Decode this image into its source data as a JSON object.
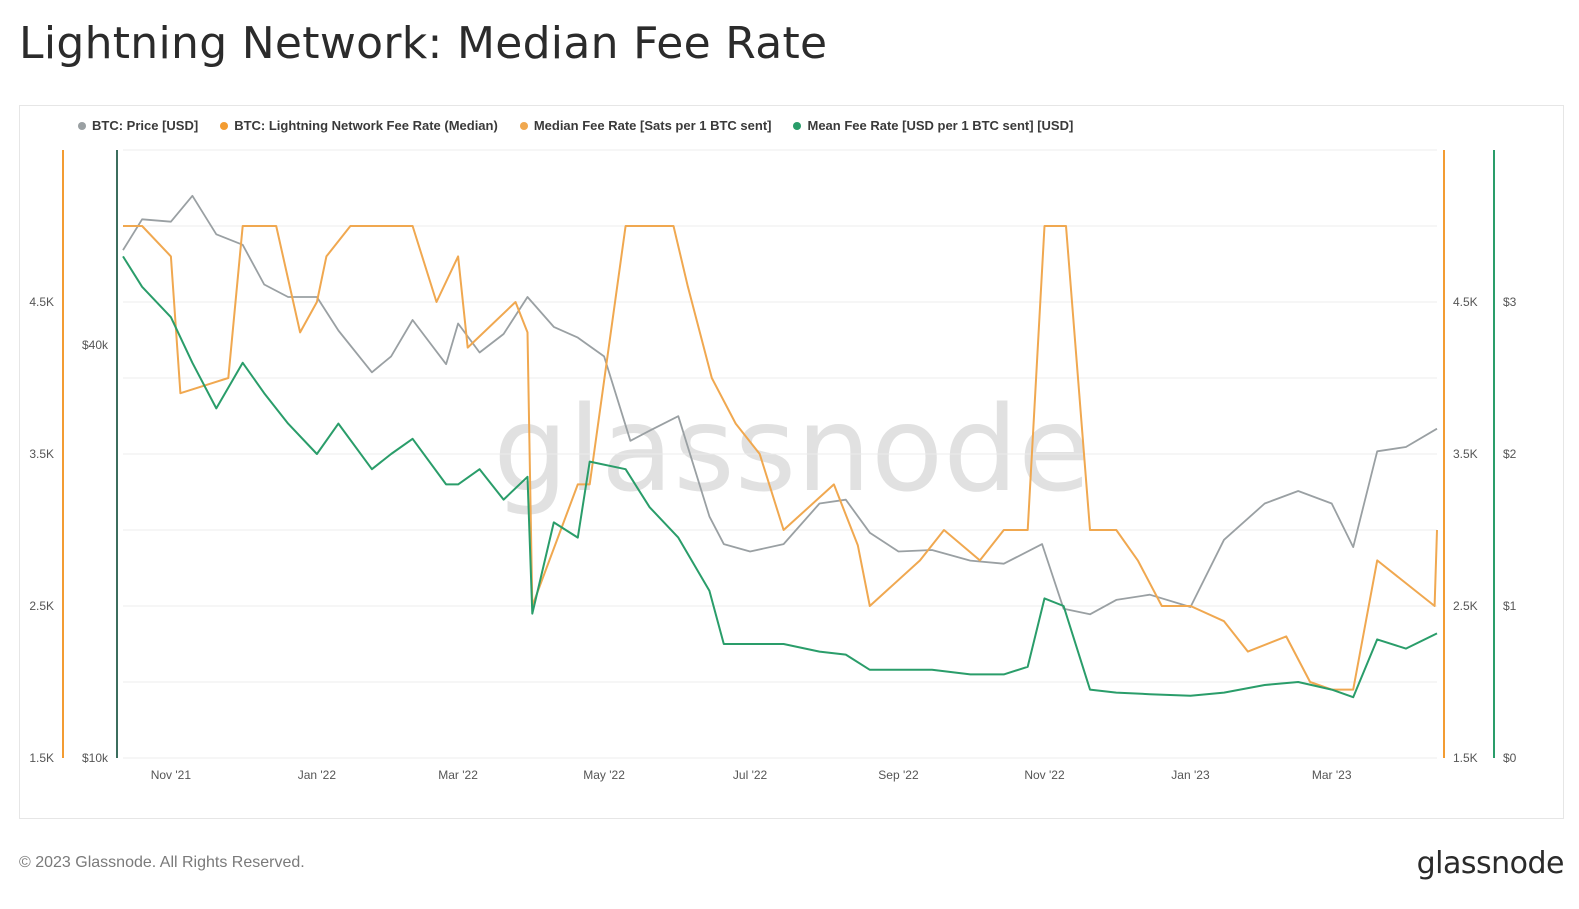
{
  "title": "Lightning Network: Median Fee Rate",
  "footer": {
    "copyright": "© 2023 Glassnode. All Rights Reserved.",
    "logo": "glassnode"
  },
  "watermark": "glassnode",
  "colors": {
    "price": "#9aa0a3",
    "ln_fee": "#f39c32",
    "median_fee": "#f0a850",
    "mean_fee": "#2a9d6a",
    "price_axis": "#3c6e5e",
    "grid": "#ececec"
  },
  "chart_data": {
    "type": "line",
    "legend_position": "top-left",
    "grid": true,
    "legend": [
      {
        "label": "BTC: Price [USD]",
        "color": "#9aa0a3"
      },
      {
        "label": "BTC: Lightning Network Fee Rate (Median)",
        "color": "#f39c32"
      },
      {
        "label": "Median Fee Rate [Sats per 1 BTC sent]",
        "color": "#f0a850"
      },
      {
        "label": "Mean Fee Rate [USD per 1 BTC sent] [USD]",
        "color": "#2a9d6a"
      }
    ],
    "x_ticks": [
      "Nov '21",
      "Jan '22",
      "Mar '22",
      "May '22",
      "Jul '22",
      "Sep '22",
      "Nov '22",
      "Jan '23",
      "Mar '23"
    ],
    "x_range": [
      "2021-10-12",
      "2023-04-14"
    ],
    "x_tick_dates": [
      "2021-11-01",
      "2022-01-01",
      "2022-03-01",
      "2022-05-01",
      "2022-07-01",
      "2022-09-01",
      "2022-11-01",
      "2023-01-01",
      "2023-03-01"
    ],
    "axes": {
      "left_sats": {
        "ticks": [
          "4.5K",
          "3.5K",
          "2.5K",
          "1.5K"
        ],
        "range": [
          1500,
          5500
        ]
      },
      "left_price": {
        "ticks": [
          "$40k",
          "$10k"
        ],
        "scale": "log"
      },
      "right_sats": {
        "ticks": [
          "4.5K",
          "3.5K",
          "2.5K",
          "1.5K"
        ],
        "range": [
          1500,
          5500
        ]
      },
      "right_usd": {
        "ticks": [
          "$3",
          "$2",
          "$1",
          "$0"
        ],
        "range": [
          0,
          4
        ]
      }
    },
    "series": [
      {
        "name": "BTC: Price [USD]",
        "axis": "left_price",
        "x": [
          "2021-10-12",
          "2021-10-20",
          "2021-11-01",
          "2021-11-10",
          "2021-11-20",
          "2021-12-01",
          "2021-12-10",
          "2021-12-20",
          "2022-01-01",
          "2022-01-10",
          "2022-01-24",
          "2022-02-01",
          "2022-02-10",
          "2022-02-24",
          "2022-03-01",
          "2022-03-10",
          "2022-03-20",
          "2022-03-30",
          "2022-04-10",
          "2022-04-20",
          "2022-05-01",
          "2022-05-12",
          "2022-05-20",
          "2022-06-01",
          "2022-06-14",
          "2022-06-20",
          "2022-07-01",
          "2022-07-15",
          "2022-07-30",
          "2022-08-10",
          "2022-08-20",
          "2022-09-01",
          "2022-09-15",
          "2022-10-01",
          "2022-10-15",
          "2022-10-31",
          "2022-11-09",
          "2022-11-20",
          "2022-12-01",
          "2022-12-15",
          "2023-01-01",
          "2023-01-15",
          "2023-02-01",
          "2023-02-15",
          "2023-03-01",
          "2023-03-10",
          "2023-03-20",
          "2023-04-01",
          "2023-04-14"
        ],
        "values": [
          55000,
          61000,
          60500,
          66000,
          58000,
          56000,
          49000,
          47000,
          47000,
          42000,
          36500,
          38500,
          43500,
          37500,
          43000,
          39000,
          41500,
          47000,
          42500,
          41000,
          38500,
          29000,
          30000,
          31500,
          22500,
          20500,
          20000,
          20500,
          23500,
          23800,
          21300,
          20000,
          20100,
          19400,
          19200,
          20500,
          16500,
          16200,
          17000,
          17300,
          16600,
          20800,
          23500,
          24500,
          23500,
          20300,
          28000,
          28400,
          30200
        ]
      },
      {
        "name": "Median Fee Rate [Sats per 1 BTC sent]",
        "axis": "left_sats",
        "x": [
          "2021-10-12",
          "2021-10-20",
          "2021-11-01",
          "2021-11-05",
          "2021-11-25",
          "2021-12-01",
          "2021-12-10",
          "2021-12-15",
          "2021-12-25",
          "2022-01-01",
          "2022-01-05",
          "2022-01-15",
          "2022-01-20",
          "2022-02-10",
          "2022-02-20",
          "2022-03-01",
          "2022-03-05",
          "2022-03-25",
          "2022-03-30",
          "2022-04-01",
          "2022-04-20",
          "2022-04-25",
          "2022-05-10",
          "2022-05-30",
          "2022-06-05",
          "2022-06-15",
          "2022-06-25",
          "2022-07-05",
          "2022-07-15",
          "2022-08-05",
          "2022-08-15",
          "2022-08-20",
          "2022-09-10",
          "2022-09-20",
          "2022-10-05",
          "2022-10-15",
          "2022-10-25",
          "2022-11-01",
          "2022-11-10",
          "2022-11-20",
          "2022-12-01",
          "2022-12-10",
          "2022-12-20",
          "2023-01-01",
          "2023-01-15",
          "2023-01-25",
          "2023-02-10",
          "2023-02-20",
          "2023-03-01",
          "2023-03-10",
          "2023-03-20",
          "2023-04-13",
          "2023-04-14"
        ],
        "values": [
          5000,
          5000,
          4800,
          3900,
          4000,
          5000,
          5000,
          5000,
          4300,
          4500,
          4800,
          5000,
          5000,
          5000,
          4500,
          4800,
          4200,
          4500,
          4300,
          2500,
          3300,
          3300,
          5000,
          5000,
          4600,
          4000,
          3700,
          3500,
          3000,
          3300,
          2900,
          2500,
          2800,
          3000,
          2800,
          3000,
          3000,
          5000,
          5000,
          3000,
          3000,
          2800,
          2500,
          2500,
          2400,
          2200,
          2300,
          2000,
          1950,
          1950,
          2800,
          2500,
          3000
        ]
      },
      {
        "name": "Mean Fee Rate [USD per 1 BTC sent] [USD]",
        "axis": "right_usd",
        "x": [
          "2021-10-12",
          "2021-10-20",
          "2021-11-01",
          "2021-11-10",
          "2021-11-20",
          "2021-12-01",
          "2021-12-10",
          "2021-12-20",
          "2022-01-01",
          "2022-01-10",
          "2022-01-24",
          "2022-02-01",
          "2022-02-10",
          "2022-02-24",
          "2022-03-01",
          "2022-03-10",
          "2022-03-20",
          "2022-03-30",
          "2022-04-01",
          "2022-04-10",
          "2022-04-20",
          "2022-04-25",
          "2022-05-10",
          "2022-05-20",
          "2022-06-01",
          "2022-06-14",
          "2022-06-20",
          "2022-07-01",
          "2022-07-15",
          "2022-07-30",
          "2022-08-10",
          "2022-08-20",
          "2022-09-01",
          "2022-09-15",
          "2022-10-01",
          "2022-10-15",
          "2022-10-25",
          "2022-11-01",
          "2022-11-09",
          "2022-11-20",
          "2022-12-01",
          "2022-12-15",
          "2023-01-01",
          "2023-01-15",
          "2023-02-01",
          "2023-02-15",
          "2023-03-01",
          "2023-03-10",
          "2023-03-20",
          "2023-04-01",
          "2023-04-14"
        ],
        "values": [
          3.3,
          3.1,
          2.9,
          2.6,
          2.3,
          2.6,
          2.4,
          2.2,
          2.0,
          2.2,
          1.9,
          2.0,
          2.1,
          1.8,
          1.8,
          1.9,
          1.7,
          1.85,
          0.95,
          1.55,
          1.45,
          1.95,
          1.9,
          1.65,
          1.45,
          1.1,
          0.75,
          0.75,
          0.75,
          0.7,
          0.68,
          0.58,
          0.58,
          0.58,
          0.55,
          0.55,
          0.6,
          1.05,
          1.0,
          0.45,
          0.43,
          0.42,
          0.41,
          0.43,
          0.48,
          0.5,
          0.45,
          0.4,
          0.78,
          0.72,
          0.82
        ]
      }
    ]
  }
}
